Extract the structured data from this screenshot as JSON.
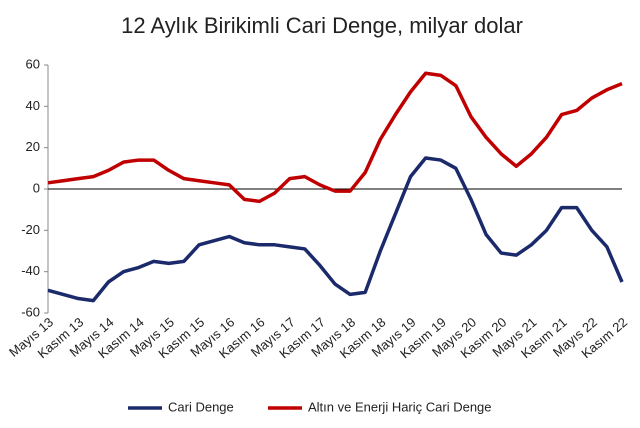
{
  "chart_data": {
    "type": "line",
    "title": "12 Aylık Birikimli Cari Denge, milyar dolar",
    "categories": [
      "Mayıs 13",
      null,
      "Kasım 13",
      null,
      "Mayıs 14",
      null,
      "Kasım 14",
      null,
      "Mayıs 15",
      null,
      "Kasım 15",
      null,
      "Mayıs 16",
      null,
      "Kasım 16",
      null,
      "Mayıs 17",
      null,
      "Kasım 17",
      null,
      "Mayıs 18",
      null,
      "Kasım 18",
      null,
      "Mayıs 19",
      null,
      "Kasım 19",
      null,
      "Mayıs 20",
      null,
      "Kasım 20",
      null,
      "Mayıs 21",
      null,
      "Kasım 21",
      null,
      "Mayıs 22",
      null,
      "Kasım 22"
    ],
    "series": [
      {
        "name": "Cari Denge",
        "color": "#1b2a6b",
        "values": [
          -49,
          -51,
          -53,
          -54,
          -45,
          -40,
          -38,
          -35,
          -36,
          -35,
          -27,
          -25,
          -23,
          -26,
          -27,
          -27,
          -28,
          -29,
          -37,
          -46,
          -51,
          -50,
          -30,
          -12,
          6,
          15,
          14,
          10,
          -5,
          -22,
          -31,
          -32,
          -27,
          -20,
          -9,
          -9,
          -20,
          -28,
          -45
        ]
      },
      {
        "name": "Altın ve Enerji Hariç Cari Denge",
        "color": "#c00000",
        "values": [
          3,
          4,
          5,
          6,
          9,
          13,
          14,
          14,
          9,
          5,
          4,
          3,
          2,
          -5,
          -6,
          -2,
          5,
          6,
          2,
          -1,
          -1,
          8,
          24,
          36,
          47,
          56,
          55,
          50,
          35,
          25,
          17,
          11,
          17,
          25,
          36,
          38,
          44,
          48,
          51
        ]
      }
    ],
    "ylim": [
      -60,
      60
    ],
    "yticks": [
      -60,
      -40,
      -20,
      0,
      20,
      40,
      60
    ],
    "legend": "bottom"
  }
}
